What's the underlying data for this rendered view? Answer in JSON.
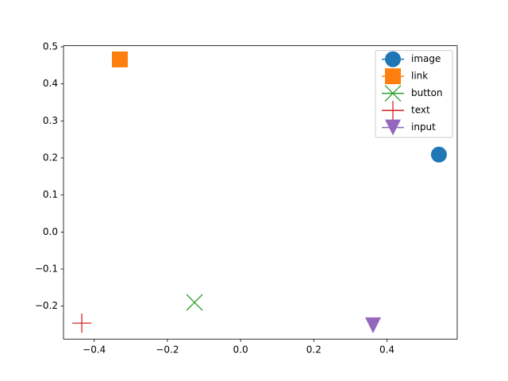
{
  "chart_data": {
    "type": "scatter",
    "series": [
      {
        "name": "image",
        "color": "#1f77b4",
        "marker": "circle",
        "x": [
          0.542
        ],
        "values": [
          0.209
        ]
      },
      {
        "name": "link",
        "color": "#ff7f0e",
        "marker": "square",
        "x": [
          -0.33
        ],
        "values": [
          0.466
        ]
      },
      {
        "name": "button",
        "color": "#2ca02c",
        "marker": "x",
        "x": [
          -0.126
        ],
        "values": [
          -0.19
        ]
      },
      {
        "name": "text",
        "color": "#d62728",
        "marker": "plus",
        "x": [
          -0.434
        ],
        "values": [
          -0.246
        ]
      },
      {
        "name": "input",
        "color": "#9467bd",
        "marker": "triangle-down",
        "x": [
          0.362
        ],
        "values": [
          -0.252
        ]
      }
    ],
    "xlim": [
      -0.484,
      0.592
    ],
    "ylim": [
      -0.289,
      0.503
    ],
    "xticks": [
      {
        "value": -0.4,
        "label": "−0.4"
      },
      {
        "value": -0.2,
        "label": "−0.2"
      },
      {
        "value": 0.0,
        "label": "0.0"
      },
      0.2,
      0.4
    ],
    "yticks": [
      {
        "value": -0.2,
        "label": "−0.2"
      },
      {
        "value": -0.1,
        "label": "−0.1"
      },
      {
        "value": 0.0,
        "label": "0.0"
      },
      0.1,
      0.2,
      0.3,
      0.4,
      0.5
    ],
    "legend": "upper right",
    "grid": false
  }
}
